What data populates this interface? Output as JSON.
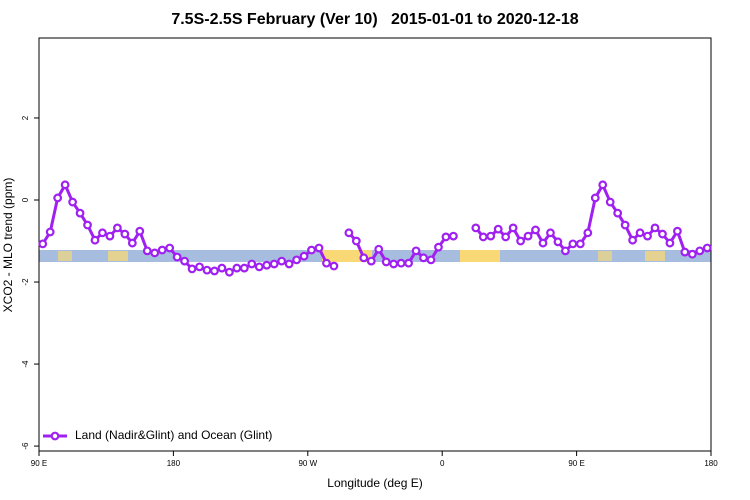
{
  "chart_data": {
    "type": "line",
    "title": "7.5S-2.5S February (Ver 10)   2015-01-01 to 2020-12-18",
    "xlabel": "Longitude (deg E)",
    "ylabel": "XCO2 - MLO trend (ppm)",
    "xlim": [
      90,
      540
    ],
    "ylim": [
      -6.12,
      3.95
    ],
    "xticks": [
      {
        "value": 90,
        "label": "90 E"
      },
      {
        "value": 180,
        "label": "180"
      },
      {
        "value": 270,
        "label": "90 W"
      },
      {
        "value": 360,
        "label": "0"
      },
      {
        "value": 450,
        "label": "90 E"
      },
      {
        "value": 540,
        "label": "180"
      }
    ],
    "yticks": [
      2,
      0,
      -2,
      -4,
      -6
    ],
    "legend": "bottom-left",
    "x": [
      92.5,
      97.5,
      102.5,
      107.5,
      112.5,
      117.5,
      122.5,
      127.5,
      132.5,
      137.5,
      142.5,
      147.5,
      152.5,
      157.5,
      162.5,
      167.5,
      172.5,
      177.5,
      182.5,
      187.5,
      192.5,
      197.5,
      202.5,
      207.5,
      212.5,
      217.5,
      222.5,
      227.5,
      232.5,
      237.5,
      242.5,
      247.5,
      252.5,
      257.5,
      262.5,
      267.5,
      272.5,
      277.5,
      282.5,
      287.5,
      292.5,
      297.5,
      302.5,
      307.5,
      312.5,
      317.5,
      322.5,
      327.5,
      332.5,
      337.5,
      342.5,
      347.5,
      352.5,
      357.5,
      362.5,
      367.5,
      372.5,
      377.5,
      382.5,
      387.5,
      392.5,
      397.5,
      402.5,
      407.5,
      412.5,
      417.5,
      422.5,
      427.5,
      432.5,
      437.5,
      442.5,
      447.5,
      452.5,
      457.5,
      462.5,
      467.5,
      472.5,
      477.5,
      482.5,
      487.5,
      492.5,
      497.5,
      502.5,
      507.5,
      512.5,
      517.5,
      522.5,
      527.5,
      532.5,
      537.5
    ],
    "series": [
      {
        "name": "Land (Nadir&Glint) and Ocean (Glint)",
        "color": "#a020f0",
        "values": [
          -1.07,
          -0.78,
          0.05,
          0.37,
          -0.05,
          -0.32,
          -0.61,
          -0.98,
          -0.8,
          -0.88,
          -0.68,
          -0.83,
          -1.05,
          -0.76,
          -1.24,
          -1.29,
          -1.22,
          -1.17,
          -1.39,
          -1.49,
          -1.68,
          -1.63,
          -1.71,
          -1.73,
          -1.66,
          -1.76,
          -1.66,
          -1.66,
          -1.56,
          -1.63,
          -1.59,
          -1.56,
          -1.49,
          -1.56,
          -1.46,
          -1.37,
          -1.22,
          -1.17,
          -1.54,
          -1.61,
          null,
          -0.8,
          -1.0,
          -1.41,
          -1.49,
          -1.2,
          -1.51,
          -1.56,
          -1.54,
          -1.54,
          -1.24,
          -1.41,
          -1.46,
          -1.15,
          -0.9,
          -0.88,
          null,
          null,
          -0.68,
          -0.9,
          -0.88,
          -0.71,
          -0.9,
          -0.68,
          -1.0,
          -0.88,
          -0.73,
          -1.05,
          -0.8,
          -1.02,
          -1.24,
          -1.07,
          -1.07,
          -0.8,
          0.05,
          0.37,
          -0.05,
          -0.32,
          -0.61,
          -0.98,
          -0.8,
          -0.88,
          -0.68,
          -0.83,
          -1.05,
          -0.76,
          -1.27,
          -1.32,
          -1.24,
          -1.17
        ]
      }
    ]
  }
}
